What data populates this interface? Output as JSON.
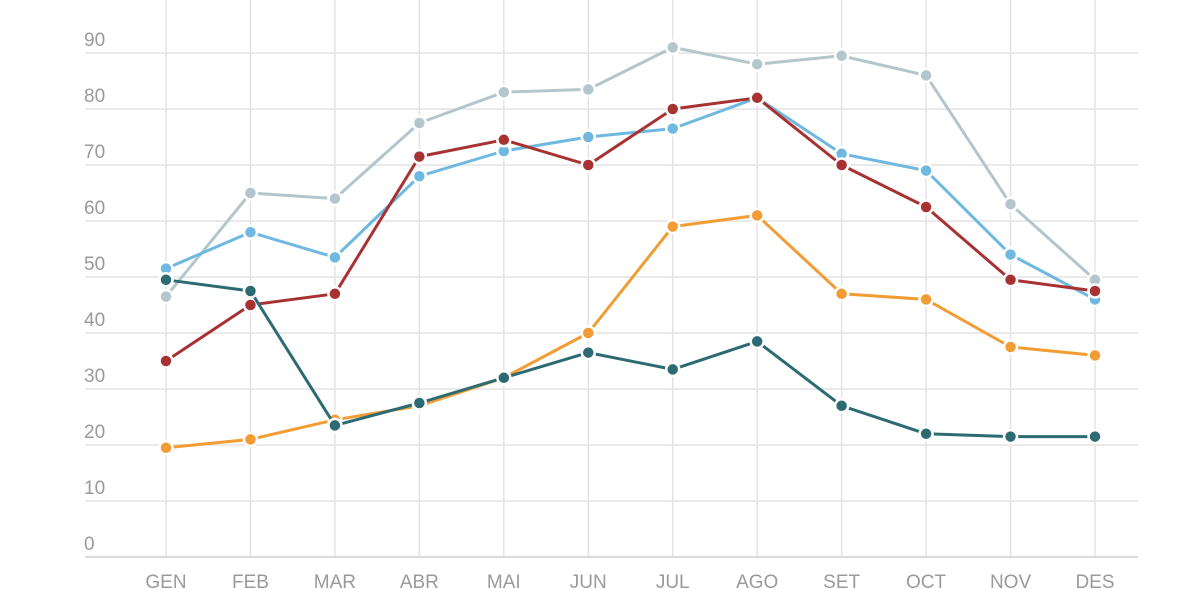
{
  "chart_data": {
    "type": "line",
    "categories": [
      "GEN",
      "FEB",
      "MAR",
      "ABR",
      "MAI",
      "JUN",
      "JUL",
      "AGO",
      "SET",
      "OCT",
      "NOV",
      "DES"
    ],
    "yticks": [
      0,
      10,
      20,
      30,
      40,
      50,
      60,
      70,
      80,
      90
    ],
    "ylim": [
      0,
      100
    ],
    "grid": true,
    "series": [
      {
        "color": "#b3c6cc",
        "values": [
          46.5,
          65,
          64,
          77.5,
          83,
          83.5,
          91,
          88,
          89.5,
          86,
          63,
          49.5
        ]
      },
      {
        "color": "#6fb8e0",
        "values": [
          51.5,
          58,
          53.5,
          68,
          72.5,
          75,
          76.5,
          82,
          72,
          69,
          54,
          46
        ]
      },
      {
        "color": "#a83232",
        "values": [
          35,
          45,
          47,
          71.5,
          74.5,
          70,
          80,
          82,
          70,
          62.5,
          49.5,
          47.5
        ]
      },
      {
        "color": "#f39c33",
        "values": [
          19.5,
          21,
          24.5,
          27,
          32,
          40,
          59,
          61,
          47,
          46,
          37.5,
          36
        ]
      },
      {
        "color": "#2d6b73",
        "values": [
          49.5,
          47.5,
          23.5,
          27.5,
          32,
          36.5,
          33.5,
          38.5,
          27,
          22,
          21.5,
          21.5
        ]
      }
    ]
  }
}
